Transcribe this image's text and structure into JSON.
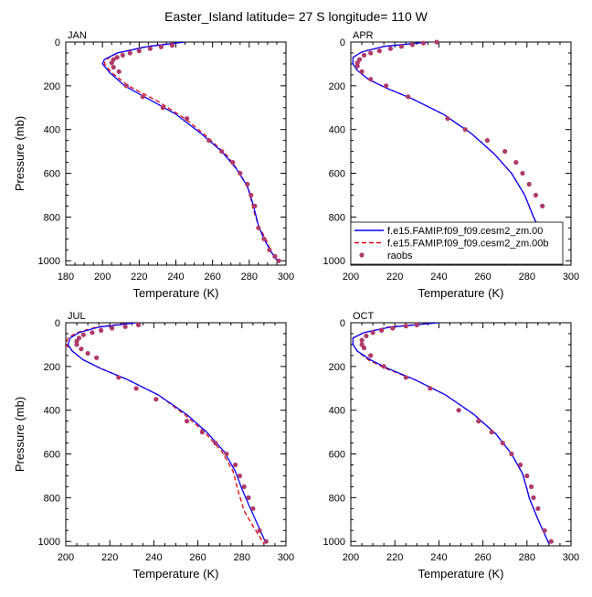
{
  "title": "Easter_Island  latitude= 27 S longitude= 110 W",
  "colors": {
    "model_00": "#0000ff",
    "model_00b": "#e8000b",
    "raobs": "#b03a6a",
    "axis": "#000000"
  },
  "legend": {
    "placement": "bottom-right of APR panel",
    "entries": [
      {
        "label": "f.e15.FAMIP.f09_f09.cesm2_zm.00",
        "style": "solid"
      },
      {
        "label": "f.e15.FAMIP.f09_f09.cesm2_zm.00b",
        "style": "dashed"
      },
      {
        "label": "raobs",
        "style": "marker"
      }
    ]
  },
  "chart_data": [
    {
      "type": "line",
      "panel": "JAN",
      "xlabel": "Temperature (K)",
      "ylabel": "Pressure (mb)",
      "xlim": [
        180,
        300
      ],
      "ylim": [
        1020,
        0
      ],
      "xticks": [
        180,
        200,
        220,
        240,
        260,
        280,
        300
      ],
      "yticks": [
        0,
        200,
        400,
        600,
        800,
        1000
      ],
      "series": [
        {
          "name": "f.e15.FAMIP.f09_f09.cesm2_zm.00",
          "x": [
            245,
            225,
            208,
            201,
            200,
            204,
            212,
            225,
            240,
            254,
            265,
            273,
            279,
            282,
            285,
            288,
            292,
            296
          ],
          "y": [
            0,
            20,
            50,
            80,
            100,
            140,
            200,
            260,
            330,
            420,
            500,
            580,
            660,
            740,
            840,
            900,
            960,
            1010
          ]
        },
        {
          "name": "f.e15.FAMIP.f09_f09.cesm2_zm.00b",
          "x": [
            243,
            224,
            208,
            202,
            201,
            205,
            214,
            230,
            245,
            258,
            268,
            275,
            280,
            282,
            285,
            289,
            292,
            296
          ],
          "y": [
            0,
            20,
            50,
            80,
            100,
            140,
            200,
            270,
            350,
            440,
            520,
            600,
            680,
            760,
            840,
            900,
            960,
            1010
          ]
        },
        {
          "name": "raobs",
          "x": [
            238,
            232,
            226,
            220,
            215,
            211,
            208,
            206,
            205,
            206,
            209,
            213,
            222,
            233,
            246,
            258,
            265,
            271,
            275,
            279,
            281,
            283,
            285,
            288,
            291,
            294,
            296
          ],
          "y": [
            15,
            22,
            30,
            40,
            50,
            60,
            70,
            80,
            95,
            115,
            135,
            200,
            250,
            300,
            350,
            450,
            500,
            550,
            600,
            650,
            700,
            750,
            850,
            900,
            950,
            980,
            1000
          ]
        }
      ]
    },
    {
      "type": "line",
      "panel": "APR",
      "xlabel": "Temperature (K)",
      "ylabel": "",
      "xlim": [
        200,
        300
      ],
      "ylim": [
        1020,
        0
      ],
      "xticks": [
        200,
        220,
        240,
        260,
        280,
        300
      ],
      "yticks": [
        0,
        200,
        400,
        600,
        800,
        1000
      ],
      "series": [
        {
          "name": "f.e15.FAMIP.f09_f09.cesm2_zm.00",
          "x": [
            235,
            215,
            205,
            201,
            201,
            203,
            208,
            216,
            228,
            242,
            255,
            265,
            273,
            279,
            283,
            288,
            293
          ],
          "y": [
            0,
            20,
            45,
            70,
            100,
            130,
            170,
            210,
            260,
            330,
            420,
            510,
            600,
            700,
            800,
            900,
            1000
          ]
        },
        {
          "name": "f.e15.FAMIP.f09_f09.cesm2_zm.00b",
          "x": [
            235,
            215,
            205,
            201,
            201,
            203,
            208,
            216,
            228,
            242,
            255,
            265,
            273,
            279,
            283,
            288,
            293
          ],
          "y": [
            0,
            20,
            45,
            70,
            100,
            130,
            170,
            210,
            260,
            330,
            420,
            510,
            600,
            700,
            800,
            900,
            1000
          ]
        },
        {
          "name": "raobs",
          "x": [
            239,
            233,
            228,
            223,
            218,
            213,
            209,
            206,
            204,
            203,
            203,
            205,
            209,
            216,
            226,
            244,
            252,
            262,
            270,
            275,
            278,
            281,
            284,
            287,
            290,
            293,
            295
          ],
          "y": [
            0,
            5,
            12,
            20,
            30,
            40,
            50,
            60,
            80,
            95,
            110,
            135,
            170,
            200,
            250,
            350,
            400,
            450,
            500,
            550,
            600,
            650,
            700,
            750,
            850,
            900,
            1000
          ]
        }
      ]
    },
    {
      "type": "line",
      "panel": "JUL",
      "xlabel": "Temperature (K)",
      "ylabel": "Pressure (mb)",
      "xlim": [
        200,
        300
      ],
      "ylim": [
        1020,
        0
      ],
      "xticks": [
        200,
        220,
        240,
        260,
        280,
        300
      ],
      "yticks": [
        0,
        200,
        400,
        600,
        800,
        1000
      ],
      "series": [
        {
          "name": "f.e15.FAMIP.f09_f09.cesm2_zm.00",
          "x": [
            232,
            215,
            206,
            202,
            201,
            203,
            208,
            216,
            228,
            242,
            255,
            264,
            272,
            277,
            280,
            283,
            287,
            291
          ],
          "y": [
            0,
            20,
            45,
            70,
            100,
            130,
            170,
            210,
            260,
            330,
            420,
            500,
            590,
            680,
            760,
            830,
            920,
            1010
          ]
        },
        {
          "name": "f.e15.FAMIP.f09_f09.cesm2_zm.00b",
          "x": [
            230,
            214,
            205,
            201,
            200,
            203,
            208,
            216,
            228,
            242,
            254,
            263,
            271,
            276,
            278,
            281,
            285,
            290
          ],
          "y": [
            0,
            20,
            45,
            70,
            100,
            130,
            170,
            210,
            260,
            330,
            420,
            500,
            590,
            680,
            760,
            860,
            930,
            1010
          ]
        },
        {
          "name": "raobs",
          "x": [
            233,
            227,
            221,
            216,
            212,
            208,
            206,
            205,
            205,
            207,
            210,
            214,
            224,
            232,
            241,
            255,
            262,
            268,
            273,
            277,
            279,
            281,
            283,
            285,
            288,
            291
          ],
          "y": [
            10,
            18,
            25,
            35,
            45,
            55,
            70,
            85,
            100,
            120,
            140,
            160,
            250,
            300,
            350,
            450,
            500,
            550,
            600,
            650,
            700,
            750,
            800,
            850,
            950,
            1000
          ]
        }
      ]
    },
    {
      "type": "line",
      "panel": "OCT",
      "xlabel": "Temperature (K)",
      "ylabel": "",
      "xlim": [
        200,
        300
      ],
      "ylim": [
        1020,
        0
      ],
      "xticks": [
        200,
        220,
        240,
        260,
        280,
        300
      ],
      "yticks": [
        0,
        200,
        400,
        600,
        800,
        1000
      ],
      "series": [
        {
          "name": "f.e15.FAMIP.f09_f09.cesm2_zm.00",
          "x": [
            240,
            218,
            206,
            201,
            201,
            203,
            209,
            217,
            229,
            243,
            256,
            266,
            273,
            278,
            280,
            281,
            285,
            290
          ],
          "y": [
            0,
            20,
            45,
            70,
            100,
            130,
            170,
            210,
            260,
            330,
            420,
            510,
            600,
            690,
            760,
            800,
            900,
            1010
          ]
        },
        {
          "name": "f.e15.FAMIP.f09_f09.cesm2_zm.00b",
          "x": [
            238,
            217,
            206,
            201,
            201,
            203,
            208,
            216,
            229,
            243,
            256,
            266,
            273,
            278,
            280,
            281,
            285,
            290
          ],
          "y": [
            0,
            20,
            45,
            70,
            100,
            130,
            170,
            210,
            260,
            330,
            420,
            510,
            600,
            690,
            760,
            800,
            900,
            1010
          ]
        },
        {
          "name": "raobs",
          "x": [
            230,
            225,
            219,
            214,
            210,
            207,
            205,
            205,
            206,
            209,
            215,
            225,
            236,
            249,
            258,
            264,
            269,
            273,
            277,
            280,
            282,
            283,
            285,
            288,
            291
          ],
          "y": [
            10,
            15,
            25,
            35,
            45,
            60,
            80,
            100,
            115,
            150,
            200,
            250,
            300,
            400,
            450,
            500,
            550,
            600,
            650,
            700,
            750,
            800,
            850,
            950,
            1000
          ]
        }
      ]
    }
  ]
}
